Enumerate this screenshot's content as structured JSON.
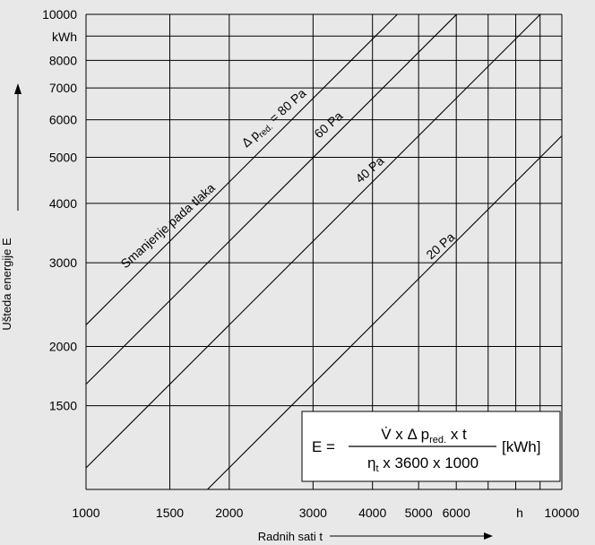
{
  "chart_data": {
    "type": "line",
    "xscale": "log",
    "yscale": "log",
    "xlim": [
      1000,
      10000
    ],
    "ylim": [
      1000,
      10000
    ],
    "x_ticks": [
      {
        "value": 1000,
        "label": "1000"
      },
      {
        "value": 1500,
        "label": "1500"
      },
      {
        "value": 2000,
        "label": "2000"
      },
      {
        "value": 3000,
        "label": "3000"
      },
      {
        "value": 4000,
        "label": "4000"
      },
      {
        "value": 5000,
        "label": "5000"
      },
      {
        "value": 6000,
        "label": "6000"
      },
      {
        "value": 10000,
        "label": "10000"
      }
    ],
    "x_grid": [
      1000,
      1500,
      2000,
      3000,
      4000,
      5000,
      6000,
      7000,
      8000,
      9000,
      10000
    ],
    "x_unit_label": "h",
    "y_ticks": [
      {
        "value": 1500,
        "label": "1500"
      },
      {
        "value": 2000,
        "label": "2000"
      },
      {
        "value": 3000,
        "label": "3000"
      },
      {
        "value": 4000,
        "label": "4000"
      },
      {
        "value": 5000,
        "label": "5000"
      },
      {
        "value": 6000,
        "label": "6000"
      },
      {
        "value": 7000,
        "label": "7000"
      },
      {
        "value": 8000,
        "label": "8000"
      },
      {
        "value": 10000,
        "label": "10000"
      }
    ],
    "y_grid": [
      1000,
      1500,
      2000,
      3000,
      4000,
      5000,
      6000,
      7000,
      8000,
      9000,
      10000
    ],
    "y_unit_label": "kWh",
    "xlabel": "Radnih sati t",
    "ylabel": "Ušteda energije E",
    "grid": true,
    "series": [
      {
        "name": "Δ p_red. = 80 Pa",
        "x": [
          1000,
          4510
        ],
        "y": [
          2220,
          10000
        ]
      },
      {
        "name": "60 Pa",
        "x": [
          1000,
          6010
        ],
        "y": [
          1665,
          10000
        ]
      },
      {
        "name": "40 Pa",
        "x": [
          1000,
          9010
        ],
        "y": [
          1110,
          10000
        ]
      },
      {
        "name": "20 Pa",
        "x": [
          1800,
          10000
        ],
        "y": [
          1000,
          5550
        ]
      }
    ],
    "annotations": {
      "reduction_label": "Smanjenje pada tlaka",
      "label_80_prefix": "Δ p",
      "label_80_sub": "red.",
      "label_80_suffix": " = 80 Pa",
      "label_60": "60 Pa",
      "label_40": "40 Pa",
      "label_20": "20 Pa"
    },
    "formula": {
      "lhs": "E =",
      "numerator_main": "V̇ x Δ p",
      "numerator_sub": "red.",
      "numerator_tail": " x t",
      "denominator_main": "η",
      "denominator_sub": "t",
      "denominator_tail": " x 3600 x 1000",
      "unit": "[kWh]"
    },
    "colors": {
      "background": "#e8e8e8",
      "lines": "#000000",
      "formula_box": "#ffffff"
    }
  }
}
